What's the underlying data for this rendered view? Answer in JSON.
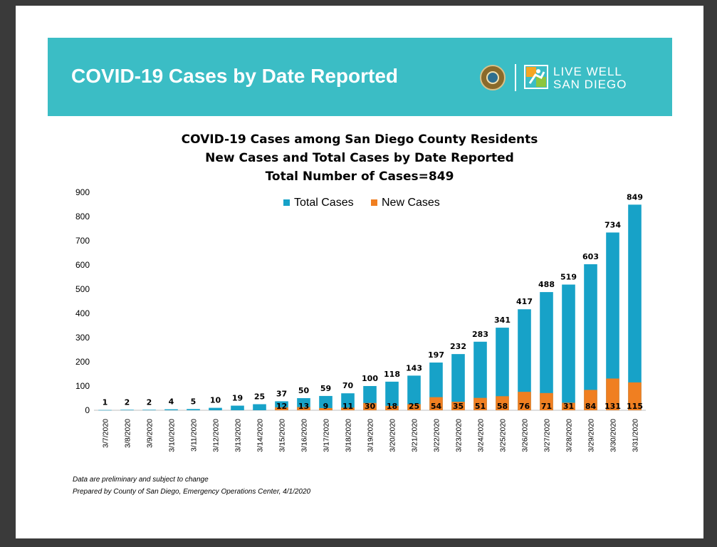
{
  "banner": {
    "title": "COVID-19 Cases by Date Reported",
    "logo_text_line1": "LIVE WELL",
    "logo_text_line2": "SAN DIEGO",
    "bg_color": "#3bbdc5"
  },
  "chart_data": {
    "type": "bar",
    "title_lines": [
      "COVID-19 Cases among San Diego County Residents",
      "New Cases and Total Cases by Date Reported",
      "Total Number of Cases=849"
    ],
    "categories": [
      "3/7/2020",
      "3/8/2020",
      "3/9/2020",
      "3/10/2020",
      "3/11/2020",
      "3/12/2020",
      "3/13/2020",
      "3/14/2020",
      "3/15/2020",
      "3/16/2020",
      "3/17/2020",
      "3/18/2020",
      "3/19/2020",
      "3/20/2020",
      "3/21/2020",
      "3/22/2020",
      "3/23/2020",
      "3/24/2020",
      "3/25/2020",
      "3/26/2020",
      "3/27/2020",
      "3/28/2020",
      "3/29/2020",
      "3/30/2020",
      "3/31/2020"
    ],
    "series": [
      {
        "name": "Total Cases",
        "color": "#17a2c8",
        "values": [
          1,
          2,
          2,
          4,
          5,
          10,
          19,
          25,
          37,
          50,
          59,
          70,
          100,
          118,
          143,
          197,
          232,
          283,
          341,
          417,
          488,
          519,
          603,
          734,
          849
        ]
      },
      {
        "name": "New Cases",
        "color": "#f07f21",
        "values": [
          null,
          null,
          null,
          null,
          null,
          null,
          null,
          null,
          12,
          13,
          9,
          11,
          30,
          18,
          25,
          54,
          35,
          51,
          58,
          76,
          71,
          31,
          84,
          131,
          115
        ]
      }
    ],
    "ylim": [
      0,
      900
    ],
    "yticks": [
      0,
      100,
      200,
      300,
      400,
      500,
      600,
      700,
      800,
      900
    ],
    "legend_position": "top-center",
    "grid": false
  },
  "footer": {
    "line1": "Data are preliminary and subject to change",
    "line2": "Prepared by County of San Diego, Emergency Operations Center, 4/1/2020"
  }
}
